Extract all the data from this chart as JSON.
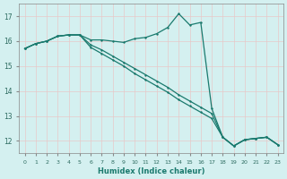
{
  "xlabel": "Humidex (Indice chaleur)",
  "background_color": "#d4f0f0",
  "grid_color": "#c0e4e4",
  "line_color": "#1a7a6e",
  "xlim": [
    -0.5,
    23.5
  ],
  "ylim": [
    11.5,
    17.5
  ],
  "xticks": [
    0,
    1,
    2,
    3,
    4,
    5,
    6,
    7,
    8,
    9,
    10,
    11,
    12,
    13,
    14,
    15,
    16,
    17,
    18,
    19,
    20,
    21,
    22,
    23
  ],
  "yticks": [
    12,
    13,
    14,
    15,
    16,
    17
  ],
  "curve_x": [
    0,
    1,
    2,
    3,
    4,
    5,
    6,
    7,
    8,
    9,
    10,
    11,
    12,
    13,
    14,
    15,
    16,
    17,
    18,
    19,
    20,
    21,
    22,
    23
  ],
  "curve_y": [
    15.7,
    15.9,
    16.0,
    16.2,
    16.25,
    16.25,
    16.05,
    16.05,
    16.0,
    15.95,
    16.1,
    16.15,
    16.3,
    16.55,
    17.1,
    16.65,
    16.75,
    13.3,
    12.15,
    11.8,
    12.05,
    12.1,
    12.15,
    11.85
  ],
  "diag1_x": [
    0,
    1,
    2,
    3,
    4,
    5,
    6,
    7,
    8,
    9,
    10,
    11,
    12,
    13,
    14,
    15,
    16,
    17,
    18,
    19,
    20,
    21,
    22,
    23
  ],
  "diag1_y": [
    15.7,
    15.9,
    16.0,
    16.2,
    16.25,
    16.25,
    15.75,
    15.5,
    15.25,
    15.0,
    14.7,
    14.45,
    14.2,
    13.95,
    13.65,
    13.4,
    13.15,
    12.9,
    12.15,
    11.8,
    12.05,
    12.1,
    12.15,
    11.85
  ],
  "diag2_x": [
    0,
    1,
    2,
    3,
    4,
    5,
    6,
    7,
    8,
    9,
    10,
    11,
    12,
    13,
    14,
    15,
    16,
    17,
    18,
    19,
    20,
    21,
    22,
    23
  ],
  "diag2_y": [
    15.7,
    15.9,
    16.0,
    16.2,
    16.25,
    16.25,
    15.85,
    15.65,
    15.4,
    15.15,
    14.9,
    14.65,
    14.4,
    14.15,
    13.85,
    13.6,
    13.35,
    13.1,
    12.15,
    11.8,
    12.05,
    12.1,
    12.15,
    11.85
  ]
}
